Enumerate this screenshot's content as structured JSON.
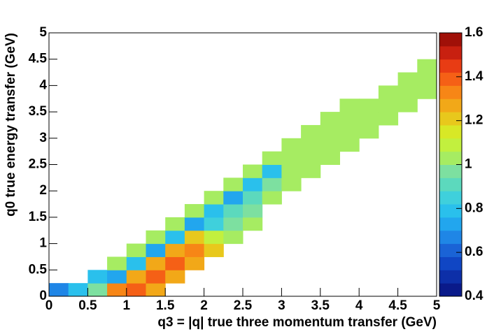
{
  "chart_data": {
    "type": "heatmap",
    "xlabel": "q3 = |q| true three momentum transfer (GeV)",
    "ylabel": "q0 true energy transfer (GeV)",
    "xlim": [
      0,
      5
    ],
    "ylim": [
      0,
      5
    ],
    "zlim": [
      0.4,
      1.6
    ],
    "xticks": [
      0,
      0.5,
      1,
      1.5,
      2,
      2.5,
      3,
      3.5,
      4,
      4.5,
      5
    ],
    "yticks": [
      0,
      0.5,
      1,
      1.5,
      2,
      2.5,
      3,
      3.5,
      4,
      4.5,
      5
    ],
    "zticks": [
      0.4,
      0.6,
      0.8,
      1,
      1.2,
      1.4,
      1.6
    ],
    "x_bins": [
      0,
      0.25,
      0.5,
      0.75,
      1,
      1.25,
      1.5,
      1.75,
      2,
      2.25,
      2.5,
      2.75,
      3,
      3.25,
      3.5,
      3.75,
      4,
      4.25,
      4.5,
      4.75,
      5
    ],
    "y_bins": [
      0,
      0.25,
      0.5,
      0.75,
      1,
      1.25,
      1.5,
      1.75,
      2,
      2.25,
      2.5,
      2.75,
      3,
      3.25,
      3.5,
      3.75,
      4,
      4.25,
      4.5,
      4.75,
      5
    ],
    "palette": [
      "#0a1a8a",
      "#0d2fa8",
      "#1046c4",
      "#1a63d6",
      "#1f86e6",
      "#22a6ee",
      "#2ac0ec",
      "#3fd0dc",
      "#5cd9bd",
      "#7de0a0",
      "#a6ec62",
      "#c2f03e",
      "#d8e826",
      "#e8c81c",
      "#f2a818",
      "#f78616",
      "#f56016",
      "#e83c14",
      "#c82010",
      "#a01008"
    ],
    "z": [
      [
        0.7,
        0.8,
        1.0,
        1.35,
        1.4,
        1.3,
        null,
        null,
        null,
        null,
        null,
        null,
        null,
        null,
        null,
        null,
        null,
        null,
        null,
        null
      ],
      [
        null,
        null,
        0.8,
        0.75,
        1.3,
        1.4,
        1.3,
        null,
        null,
        null,
        null,
        null,
        null,
        null,
        null,
        null,
        null,
        null,
        null,
        null
      ],
      [
        null,
        null,
        null,
        1.05,
        0.8,
        1.3,
        1.4,
        1.25,
        null,
        null,
        null,
        null,
        null,
        null,
        null,
        null,
        null,
        null,
        null,
        null
      ],
      [
        null,
        null,
        null,
        null,
        1.05,
        0.75,
        1.3,
        1.35,
        1.2,
        null,
        null,
        null,
        null,
        null,
        null,
        null,
        null,
        null,
        null,
        null
      ],
      [
        null,
        null,
        null,
        null,
        null,
        1.05,
        0.8,
        1.2,
        1.1,
        1.05,
        null,
        null,
        null,
        null,
        null,
        null,
        null,
        null,
        null,
        null
      ],
      [
        null,
        null,
        null,
        null,
        null,
        null,
        1.05,
        0.75,
        0.85,
        1.0,
        1.05,
        null,
        null,
        null,
        null,
        null,
        null,
        null,
        null,
        null
      ],
      [
        null,
        null,
        null,
        null,
        null,
        null,
        null,
        1.05,
        0.8,
        0.9,
        1.0,
        null,
        null,
        null,
        null,
        null,
        null,
        null,
        null,
        null
      ],
      [
        null,
        null,
        null,
        null,
        null,
        null,
        null,
        null,
        1.05,
        0.75,
        0.9,
        1.05,
        null,
        null,
        null,
        null,
        null,
        null,
        null,
        null
      ],
      [
        null,
        null,
        null,
        null,
        null,
        null,
        null,
        null,
        null,
        1.05,
        0.8,
        0.95,
        1.05,
        null,
        null,
        null,
        null,
        null,
        null,
        null
      ],
      [
        null,
        null,
        null,
        null,
        null,
        null,
        null,
        null,
        null,
        null,
        1.05,
        0.8,
        1.05,
        1.05,
        null,
        null,
        null,
        null,
        null,
        null
      ],
      [
        null,
        null,
        null,
        null,
        null,
        null,
        null,
        null,
        null,
        null,
        null,
        1.05,
        1.05,
        1.05,
        1.05,
        null,
        null,
        null,
        null,
        null
      ],
      [
        null,
        null,
        null,
        null,
        null,
        null,
        null,
        null,
        null,
        null,
        null,
        null,
        1.05,
        1.05,
        1.05,
        1.05,
        null,
        null,
        null,
        null
      ],
      [
        null,
        null,
        null,
        null,
        null,
        null,
        null,
        null,
        null,
        null,
        null,
        null,
        null,
        1.05,
        1.05,
        1.05,
        1.05,
        null,
        null,
        null
      ],
      [
        null,
        null,
        null,
        null,
        null,
        null,
        null,
        null,
        null,
        null,
        null,
        null,
        null,
        null,
        1.05,
        1.05,
        1.05,
        1.05,
        null,
        null
      ],
      [
        null,
        null,
        null,
        null,
        null,
        null,
        null,
        null,
        null,
        null,
        null,
        null,
        null,
        null,
        null,
        1.05,
        1.05,
        1.05,
        1.05,
        null
      ],
      [
        null,
        null,
        null,
        null,
        null,
        null,
        null,
        null,
        null,
        null,
        null,
        null,
        null,
        null,
        null,
        null,
        null,
        1.05,
        1.05,
        1.05
      ],
      [
        null,
        null,
        null,
        null,
        null,
        null,
        null,
        null,
        null,
        null,
        null,
        null,
        null,
        null,
        null,
        null,
        null,
        null,
        1.05,
        1.05
      ],
      [
        null,
        null,
        null,
        null,
        null,
        null,
        null,
        null,
        null,
        null,
        null,
        null,
        null,
        null,
        null,
        null,
        null,
        null,
        null,
        1.05
      ],
      [
        null,
        null,
        null,
        null,
        null,
        null,
        null,
        null,
        null,
        null,
        null,
        null,
        null,
        null,
        null,
        null,
        null,
        null,
        null,
        null
      ],
      [
        null,
        null,
        null,
        null,
        null,
        null,
        null,
        null,
        null,
        null,
        null,
        null,
        null,
        null,
        null,
        null,
        null,
        null,
        null,
        null
      ]
    ]
  }
}
